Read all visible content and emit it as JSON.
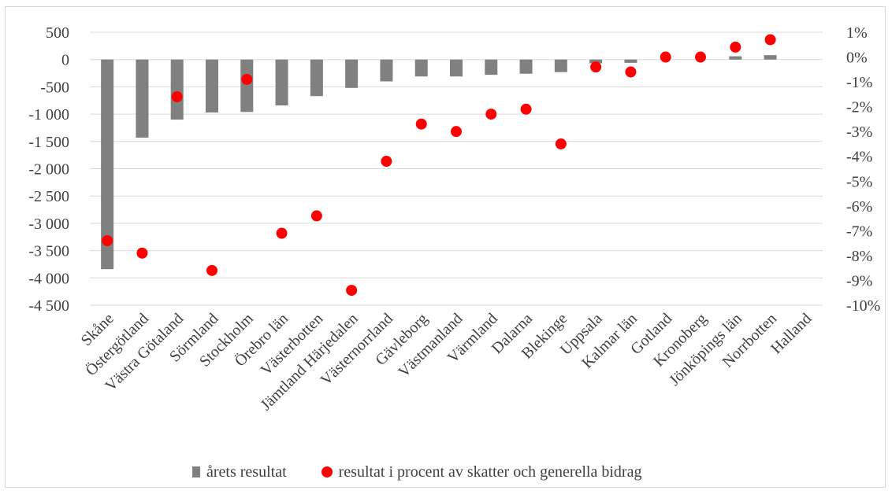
{
  "chart_data": {
    "type": "bar",
    "categories": [
      "Skåne",
      "Östergötland",
      "Västra Götaland",
      "Sörmland",
      "Stockholm",
      "Örebro län",
      "Västerbotten",
      "Jämtland Härjedalen",
      "Västernorrland",
      "Gävleborg",
      "Västmanland",
      "Värmland",
      "Dalarna",
      "Blekinge",
      "Uppsala",
      "Kalmar län",
      "Gotland",
      "Kronoberg",
      "Jönköpings län",
      "Norrbotten",
      "Halland"
    ],
    "series": [
      {
        "name": "årets resultat",
        "type": "bar",
        "axis": "left",
        "color": "#808080",
        "values": [
          -3840,
          -1430,
          -1100,
          -970,
          -960,
          -840,
          -670,
          -520,
          -400,
          -310,
          -310,
          -280,
          -260,
          -230,
          -70,
          -60,
          0,
          0,
          60,
          80,
          0
        ]
      },
      {
        "name": "resultat i procent av skatter och generella bidrag",
        "type": "scatter",
        "axis": "right",
        "color": "#ff0000",
        "values": [
          -7.4,
          -7.9,
          -1.6,
          -8.6,
          -0.9,
          -7.1,
          -6.4,
          -9.4,
          -4.2,
          -2.7,
          -3.0,
          -2.3,
          -2.1,
          -3.5,
          -0.4,
          -0.6,
          0.0,
          0.0,
          0.4,
          0.7,
          null
        ]
      }
    ],
    "y_left": {
      "ylim": [
        -4500,
        500
      ],
      "ticks": [
        500,
        0,
        -500,
        -1000,
        -1500,
        -2000,
        -2500,
        -3000,
        -3500,
        -4000,
        -4500
      ],
      "tick_labels": [
        "500",
        "0",
        "-500",
        "-1 000",
        "-1 500",
        "-2 000",
        "-2 500",
        "-3 000",
        "-3 500",
        "-4 000",
        "-4 500"
      ]
    },
    "y_right": {
      "ylim": [
        -10,
        1
      ],
      "ticks": [
        1,
        0,
        -1,
        -2,
        -3,
        -4,
        -5,
        -6,
        -7,
        -8,
        -9,
        -10
      ],
      "tick_labels": [
        "1%",
        "0%",
        "-1%",
        "-2%",
        "-3%",
        "-4%",
        "-5%",
        "-6%",
        "-7%",
        "-8%",
        "-9%",
        "-10%"
      ]
    },
    "grid": true,
    "legend_position": "bottom"
  }
}
